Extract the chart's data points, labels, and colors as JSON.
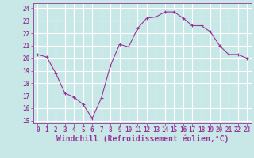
{
  "x": [
    0,
    1,
    2,
    3,
    4,
    5,
    6,
    7,
    8,
    9,
    10,
    11,
    12,
    13,
    14,
    15,
    16,
    17,
    18,
    19,
    20,
    21,
    22,
    23
  ],
  "y": [
    20.3,
    20.1,
    18.8,
    17.2,
    16.9,
    16.3,
    15.2,
    16.8,
    19.4,
    21.1,
    20.9,
    22.4,
    23.2,
    23.3,
    23.7,
    23.7,
    23.2,
    22.6,
    22.6,
    22.1,
    21.0,
    20.3,
    20.3,
    20.0
  ],
  "line_color": "#993399",
  "marker_color": "#993399",
  "bg_color": "#c8e8e8",
  "grid_color": "#b0d0d0",
  "xlabel": "Windchill (Refroidissement éolien,°C)",
  "xlabel_color": "#993399",
  "ylim": [
    14.8,
    24.4
  ],
  "xlim": [
    -0.5,
    23.5
  ],
  "yticks": [
    15,
    16,
    17,
    18,
    19,
    20,
    21,
    22,
    23,
    24
  ],
  "xticks": [
    0,
    1,
    2,
    3,
    4,
    5,
    6,
    7,
    8,
    9,
    10,
    11,
    12,
    13,
    14,
    15,
    16,
    17,
    18,
    19,
    20,
    21,
    22,
    23
  ],
  "tick_color": "#993399",
  "tick_fontsize": 5.5,
  "xlabel_fontsize": 7.0,
  "spine_color": "#993399",
  "marker_size": 2.5,
  "line_width": 0.8
}
